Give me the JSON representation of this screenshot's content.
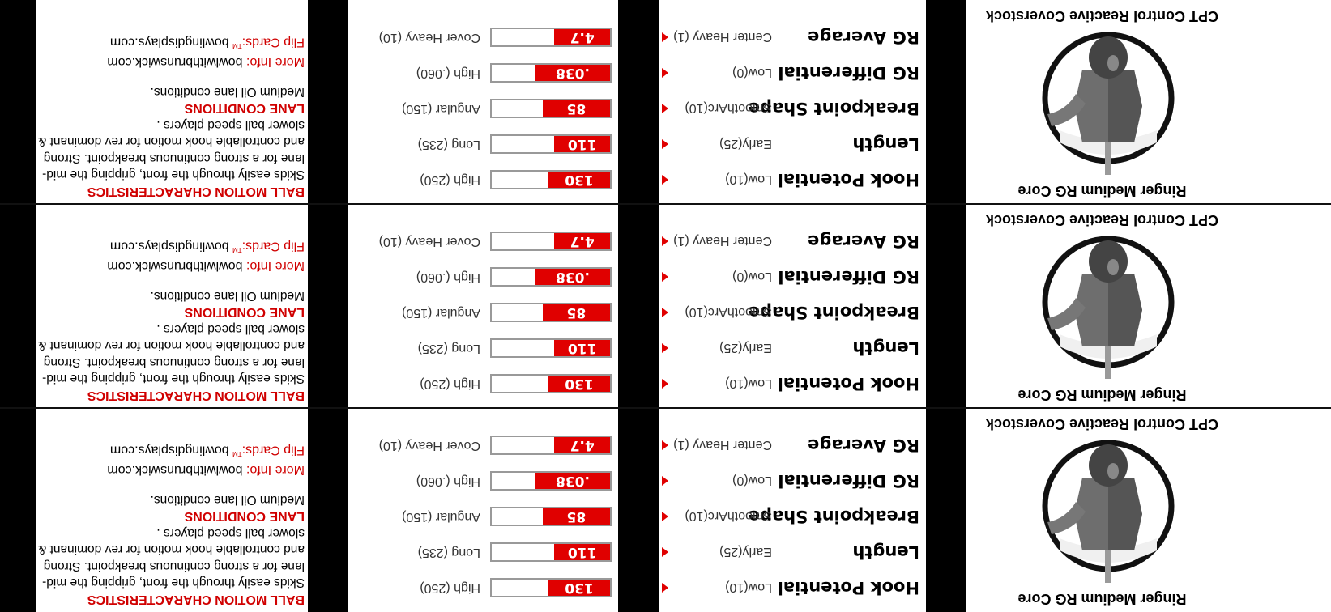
{
  "colors": {
    "accent": "#e00000",
    "heading": "#d00000",
    "frame": "#000000"
  },
  "cards": [
    {
      "core_label": "Ringer Medium RG Core",
      "coverstock_label": "CPT Control Reactive Coverstock",
      "core_image_icon": "bowling-ball-core-icon",
      "specs": [
        {
          "name": "Hook Potential",
          "low": "Low(10)",
          "value": "130",
          "high": "High (250)",
          "fraction": 0.52
        },
        {
          "name": "Length",
          "low": "Early(25)",
          "value": "110",
          "high": "Long (235)",
          "fraction": 0.47
        },
        {
          "name": "Breakpoint Shape",
          "low": "SmoothArc(10)",
          "value": "85",
          "high": "Angular (150)",
          "fraction": 0.57
        },
        {
          "name": "RG Differential",
          "low": "Low(0)",
          "value": ".038",
          "high": "High (.060)",
          "fraction": 0.63
        },
        {
          "name": "RG Average",
          "low": "Center Heavy (1)",
          "value": "4.7",
          "high": "Cover Heavy (10)",
          "fraction": 0.47
        }
      ],
      "ball_motion_heading": "BALL MOTION CHARACTERISTICS",
      "ball_motion_text": "Skids easily through the front, gripping the mid-lane for a strong continuous breakpoint. Strong and controllable hook motion for rev dominant & slower ball speed players .",
      "lane_heading": "LANE CONDITIONS",
      "lane_text": "Medium Oil lane conditions.",
      "more_info_label": "More Info:",
      "more_info_value": "bowlwithbrunswick.com",
      "flip_cards_label": "Flip Cards:",
      "flip_cards_tm": "TM",
      "flip_cards_value": "bowlingdisplays.com"
    },
    {
      "core_label": "Ringer Medium RG Core",
      "coverstock_label": "CPT Control Reactive Coverstock",
      "core_image_icon": "bowling-ball-core-icon",
      "specs": [
        {
          "name": "Hook Potential",
          "low": "Low(10)",
          "value": "130",
          "high": "High (250)",
          "fraction": 0.52
        },
        {
          "name": "Length",
          "low": "Early(25)",
          "value": "110",
          "high": "Long (235)",
          "fraction": 0.47
        },
        {
          "name": "Breakpoint Shape",
          "low": "SmoothArc(10)",
          "value": "85",
          "high": "Angular (150)",
          "fraction": 0.57
        },
        {
          "name": "RG Differential",
          "low": "Low(0)",
          "value": ".038",
          "high": "High (.060)",
          "fraction": 0.63
        },
        {
          "name": "RG Average",
          "low": "Center Heavy (1)",
          "value": "4.7",
          "high": "Cover Heavy (10)",
          "fraction": 0.47
        }
      ],
      "ball_motion_heading": "BALL MOTION CHARACTERISTICS",
      "ball_motion_text": "Skids easily through the front, gripping the mid-lane for a strong continuous breakpoint. Strong and controllable hook motion for rev dominant & slower ball speed players .",
      "lane_heading": "LANE CONDITIONS",
      "lane_text": "Medium Oil lane conditions.",
      "more_info_label": "More Info:",
      "more_info_value": "bowlwithbrunswick.com",
      "flip_cards_label": "Flip Cards:",
      "flip_cards_tm": "TM",
      "flip_cards_value": "bowlingdisplays.com"
    },
    {
      "core_label": "Ringer Medium RG Core",
      "coverstock_label": "CPT Control Reactive Coverstock",
      "core_image_icon": "bowling-ball-core-icon",
      "specs": [
        {
          "name": "Hook Potential",
          "low": "Low(10)",
          "value": "130",
          "high": "High (250)",
          "fraction": 0.52
        },
        {
          "name": "Length",
          "low": "Early(25)",
          "value": "110",
          "high": "Long (235)",
          "fraction": 0.47
        },
        {
          "name": "Breakpoint Shape",
          "low": "SmoothArc(10)",
          "value": "85",
          "high": "Angular (150)",
          "fraction": 0.57
        },
        {
          "name": "RG Differential",
          "low": "Low(0)",
          "value": ".038",
          "high": "High (.060)",
          "fraction": 0.63
        },
        {
          "name": "RG Average",
          "low": "Center Heavy (1)",
          "value": "4.7",
          "high": "Cover Heavy (10)",
          "fraction": 0.47
        }
      ],
      "ball_motion_heading": "BALL MOTION CHARACTERISTICS",
      "ball_motion_text": "Skids easily through the front, gripping the mid-lane for a strong continuous breakpoint. Strong and controllable hook motion for rev dominant & slower ball speed players .",
      "lane_heading": "LANE CONDITIONS",
      "lane_text": "Medium Oil lane conditions.",
      "more_info_label": "More Info:",
      "more_info_value": "bowlwithbrunswick.com",
      "flip_cards_label": "Flip Cards:",
      "flip_cards_tm": "TM",
      "flip_cards_value": "bowlingdisplays.com"
    }
  ]
}
